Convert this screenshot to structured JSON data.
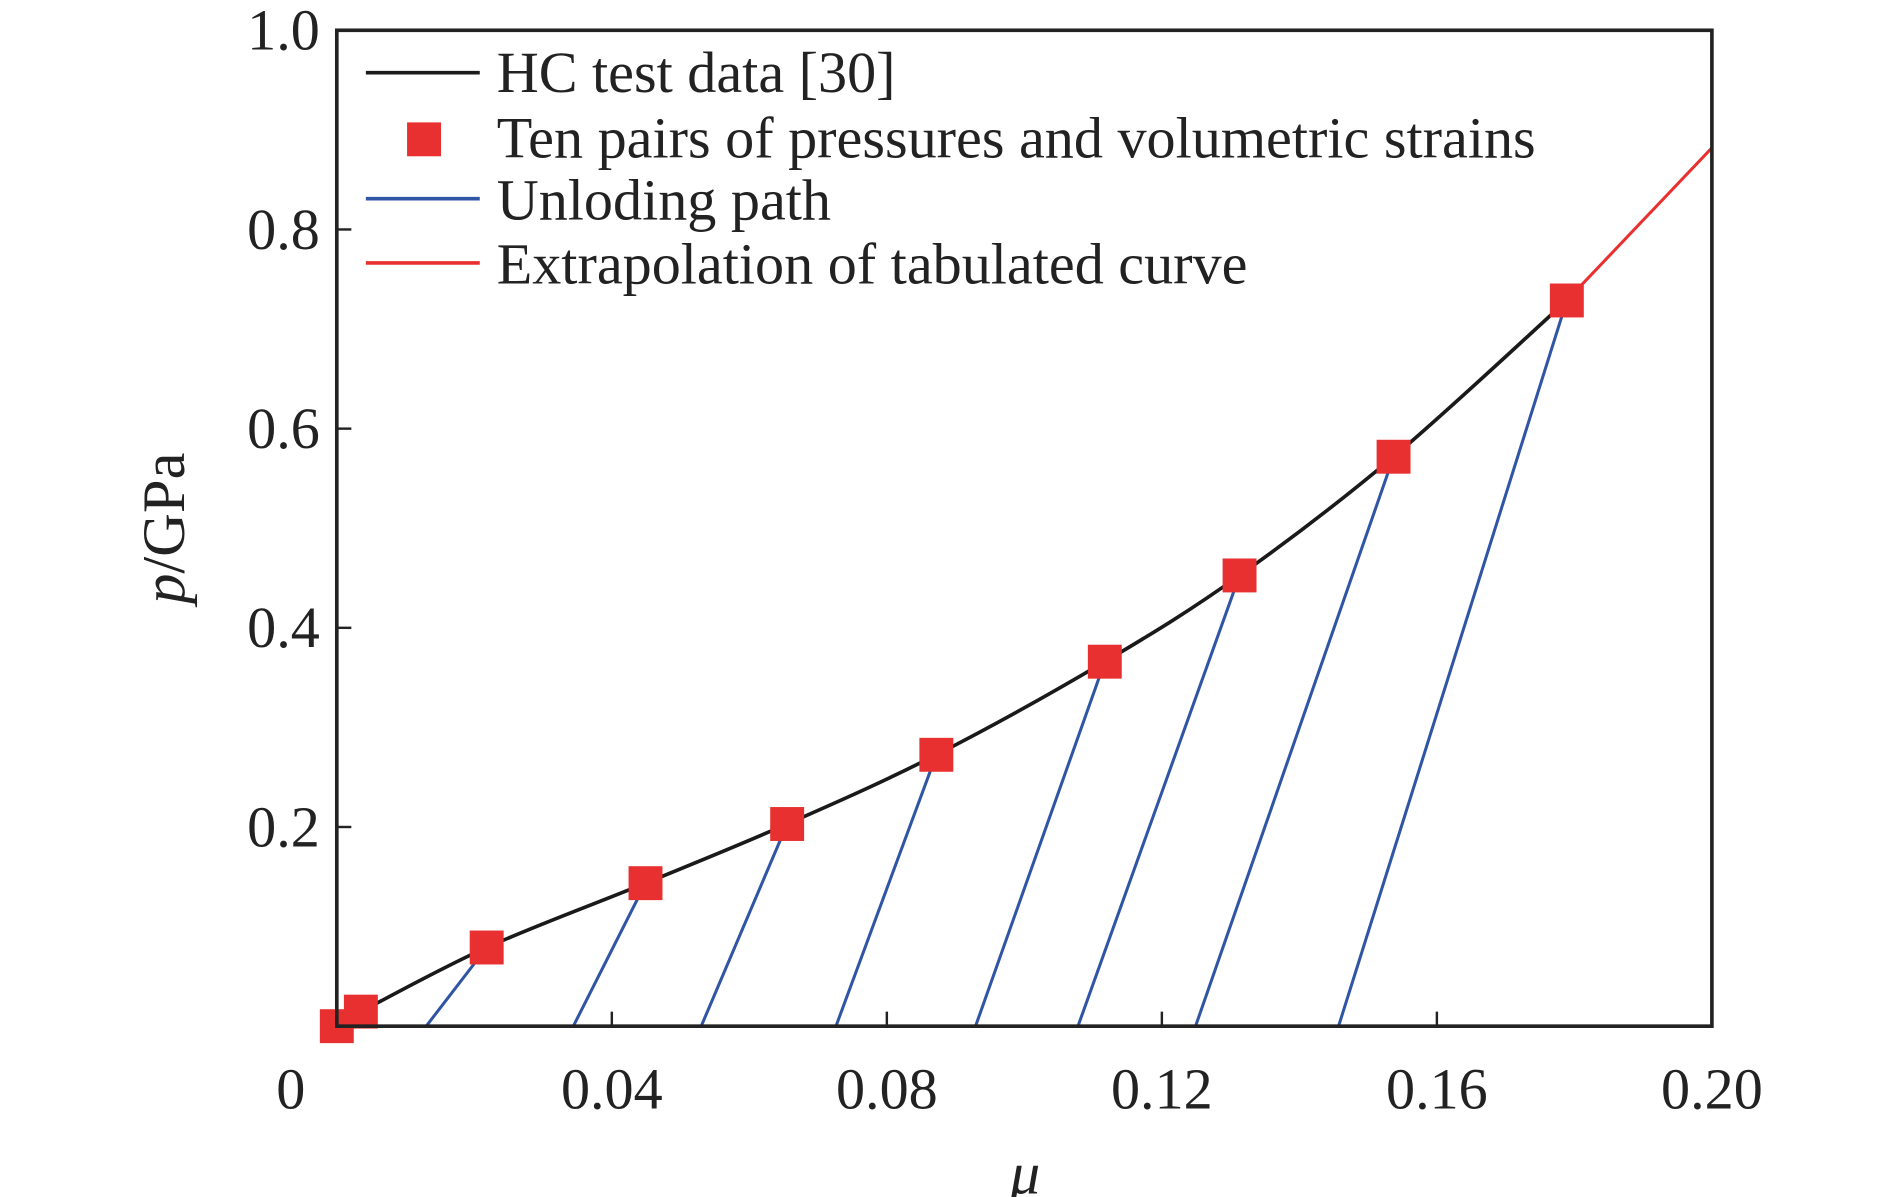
{
  "chart_data": {
    "type": "line",
    "title": "",
    "xlabel": "μ",
    "ylabel_italic": "p",
    "ylabel_unit": "/GPa",
    "xlim": [
      0,
      0.2
    ],
    "ylim": [
      0,
      1.0
    ],
    "grid": false,
    "legend_placement": "top-left",
    "x_ticks": [
      "0",
      "0.04",
      "0.08",
      "0.12",
      "0.16",
      "0.20"
    ],
    "x_tick_values": [
      0,
      0.04,
      0.08,
      0.12,
      0.16,
      0.2
    ],
    "y_ticks": [
      "0.2",
      "0.4",
      "0.6",
      "0.8",
      "1.0"
    ],
    "y_tick_values": [
      0.2,
      0.4,
      0.6,
      0.8,
      1.0
    ],
    "series": [
      {
        "name": "HC test data [30]",
        "kind": "line",
        "color": "#1a1a1a",
        "x": [
          0.0035,
          0.0218,
          0.0449,
          0.0655,
          0.0872,
          0.1117,
          0.1313,
          0.1537,
          0.1789
        ],
        "y": [
          0.0146,
          0.079,
          0.1436,
          0.203,
          0.2725,
          0.366,
          0.4526,
          0.5718,
          0.7287
        ]
      },
      {
        "name": "Ten pairs of pressures and volumetric strains",
        "kind": "marker",
        "color": "#e83030",
        "x": [
          0,
          0.0035,
          0.0218,
          0.0449,
          0.0655,
          0.0872,
          0.1117,
          0.1313,
          0.1537,
          0.1789
        ],
        "y": [
          0,
          0.0146,
          0.079,
          0.1436,
          0.203,
          0.2725,
          0.366,
          0.4526,
          0.5718,
          0.7287
        ]
      },
      {
        "name": "Unloding path",
        "kind": "segments",
        "color": "#2f55a4",
        "from_x": [
          0.0218,
          0.0449,
          0.0655,
          0.0872,
          0.1117,
          0.1313,
          0.1537,
          0.1789
        ],
        "from_y": [
          0.079,
          0.1436,
          0.203,
          0.2725,
          0.366,
          0.4526,
          0.5718,
          0.7287
        ],
        "to_x": [
          0.013,
          0.0344,
          0.053,
          0.0726,
          0.0929,
          0.1078,
          0.1249,
          0.1457
        ],
        "to_y": [
          0,
          0,
          0,
          0,
          0,
          0,
          0,
          0
        ]
      },
      {
        "name": "Extrapolation of tabulated curve",
        "kind": "line",
        "color": "#e83030",
        "x": [
          0.1789,
          0.2
        ],
        "y": [
          0.7287,
          0.882
        ]
      }
    ]
  }
}
